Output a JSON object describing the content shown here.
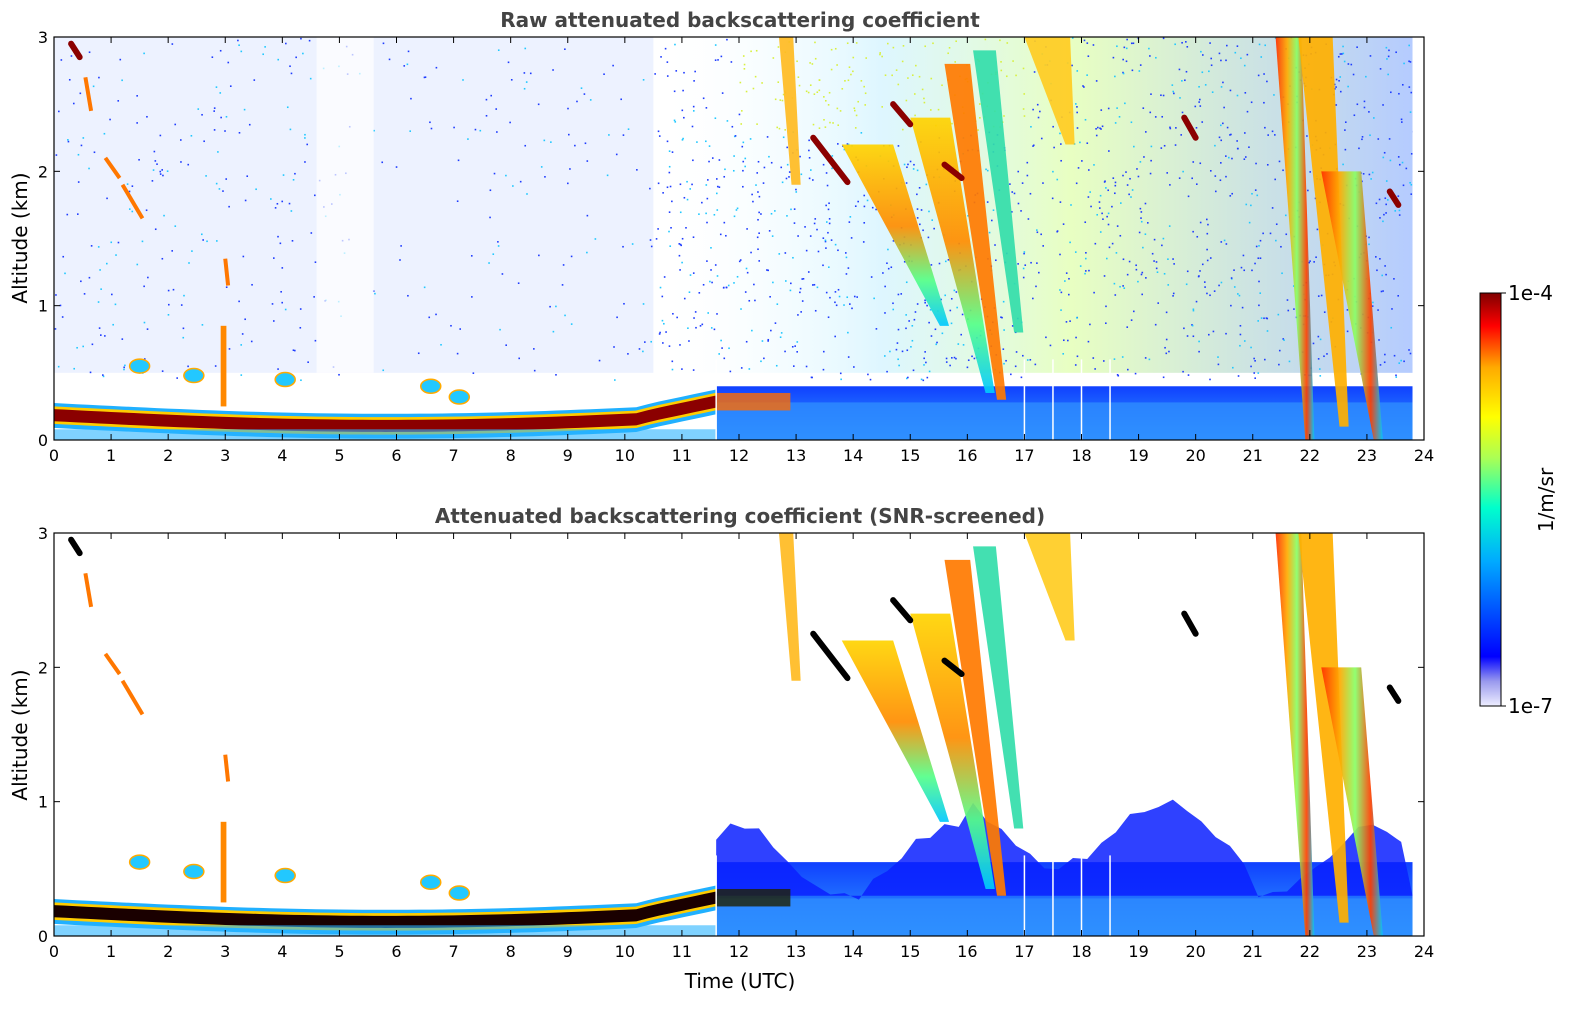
{
  "chart_data": [
    {
      "type": "heatmap",
      "title": "Raw attenuated backscattering coefficient",
      "xlabel": "",
      "ylabel": "Altitude (km)",
      "xlim": [
        0,
        24
      ],
      "ylim": [
        0,
        3
      ],
      "x_ticks": [
        "0",
        "1",
        "2",
        "3",
        "4",
        "5",
        "6",
        "7",
        "8",
        "9",
        "10",
        "11",
        "12",
        "13",
        "14",
        "15",
        "16",
        "17",
        "18",
        "19",
        "20",
        "21",
        "22",
        "23",
        "24"
      ],
      "y_ticks": [
        "0",
        "1",
        "2",
        "3"
      ],
      "features": [
        {
          "kind": "boundary_layer",
          "time_start": 0,
          "time_end": 11.6,
          "altitude_start_km": 0.18,
          "altitude_end_km": 0.25,
          "level": "high"
        },
        {
          "kind": "low_layer",
          "time_start": 11.6,
          "time_end": 23.8,
          "altitude_start_km": 0.0,
          "altitude_end_km": 0.4,
          "level": "low"
        },
        {
          "kind": "noise_region",
          "time_start": 10.5,
          "time_end": 23.8,
          "altitude_start_km": 0.5,
          "altitude_end_km": 3.0,
          "level": "low"
        },
        {
          "kind": "cloud_fall",
          "time_start": 13.8,
          "time_end": 16.4,
          "altitude_start_km": 0.3,
          "altitude_end_km": 3.0,
          "level": "mid-high"
        },
        {
          "kind": "cloud_fall",
          "time_start": 21.5,
          "time_end": 23.2,
          "altitude_start_km": 0.0,
          "altitude_end_km": 3.0,
          "level": "high"
        }
      ]
    },
    {
      "type": "heatmap",
      "title": "Attenuated backscattering coefficient (SNR-screened)",
      "xlabel": "Time (UTC)",
      "ylabel": "Altitude (km)",
      "xlim": [
        0,
        24
      ],
      "ylim": [
        0,
        3
      ],
      "x_ticks": [
        "0",
        "1",
        "2",
        "3",
        "4",
        "5",
        "6",
        "7",
        "8",
        "9",
        "10",
        "11",
        "12",
        "13",
        "14",
        "15",
        "16",
        "17",
        "18",
        "19",
        "20",
        "21",
        "22",
        "23",
        "24"
      ],
      "y_ticks": [
        "0",
        "1",
        "2",
        "3"
      ],
      "features": [
        {
          "kind": "boundary_layer",
          "time_start": 0,
          "time_end": 11.6,
          "altitude_start_km": 0.18,
          "altitude_end_km": 0.25,
          "level": "saturated"
        },
        {
          "kind": "low_layer",
          "time_start": 11.6,
          "time_end": 23.8,
          "altitude_start_km": 0.0,
          "altitude_end_km": 0.6,
          "level": "low"
        },
        {
          "kind": "cloud_fall",
          "time_start": 13.8,
          "time_end": 16.9,
          "altitude_start_km": 0.3,
          "altitude_end_km": 3.0,
          "level": "mid-high"
        },
        {
          "kind": "cloud_fall",
          "time_start": 21.5,
          "time_end": 23.2,
          "altitude_start_km": 0.0,
          "altitude_end_km": 3.0,
          "level": "high"
        }
      ]
    }
  ],
  "colorbar": {
    "max_label": "1e-4",
    "min_label": "1e-7",
    "label": "1/m/sr",
    "colormap": "jet",
    "colors": [
      "#eeeeff",
      "#0000ff",
      "#00aaff",
      "#00ffcc",
      "#aaff55",
      "#ffff00",
      "#ffaa00",
      "#ff0000",
      "#800000"
    ]
  }
}
